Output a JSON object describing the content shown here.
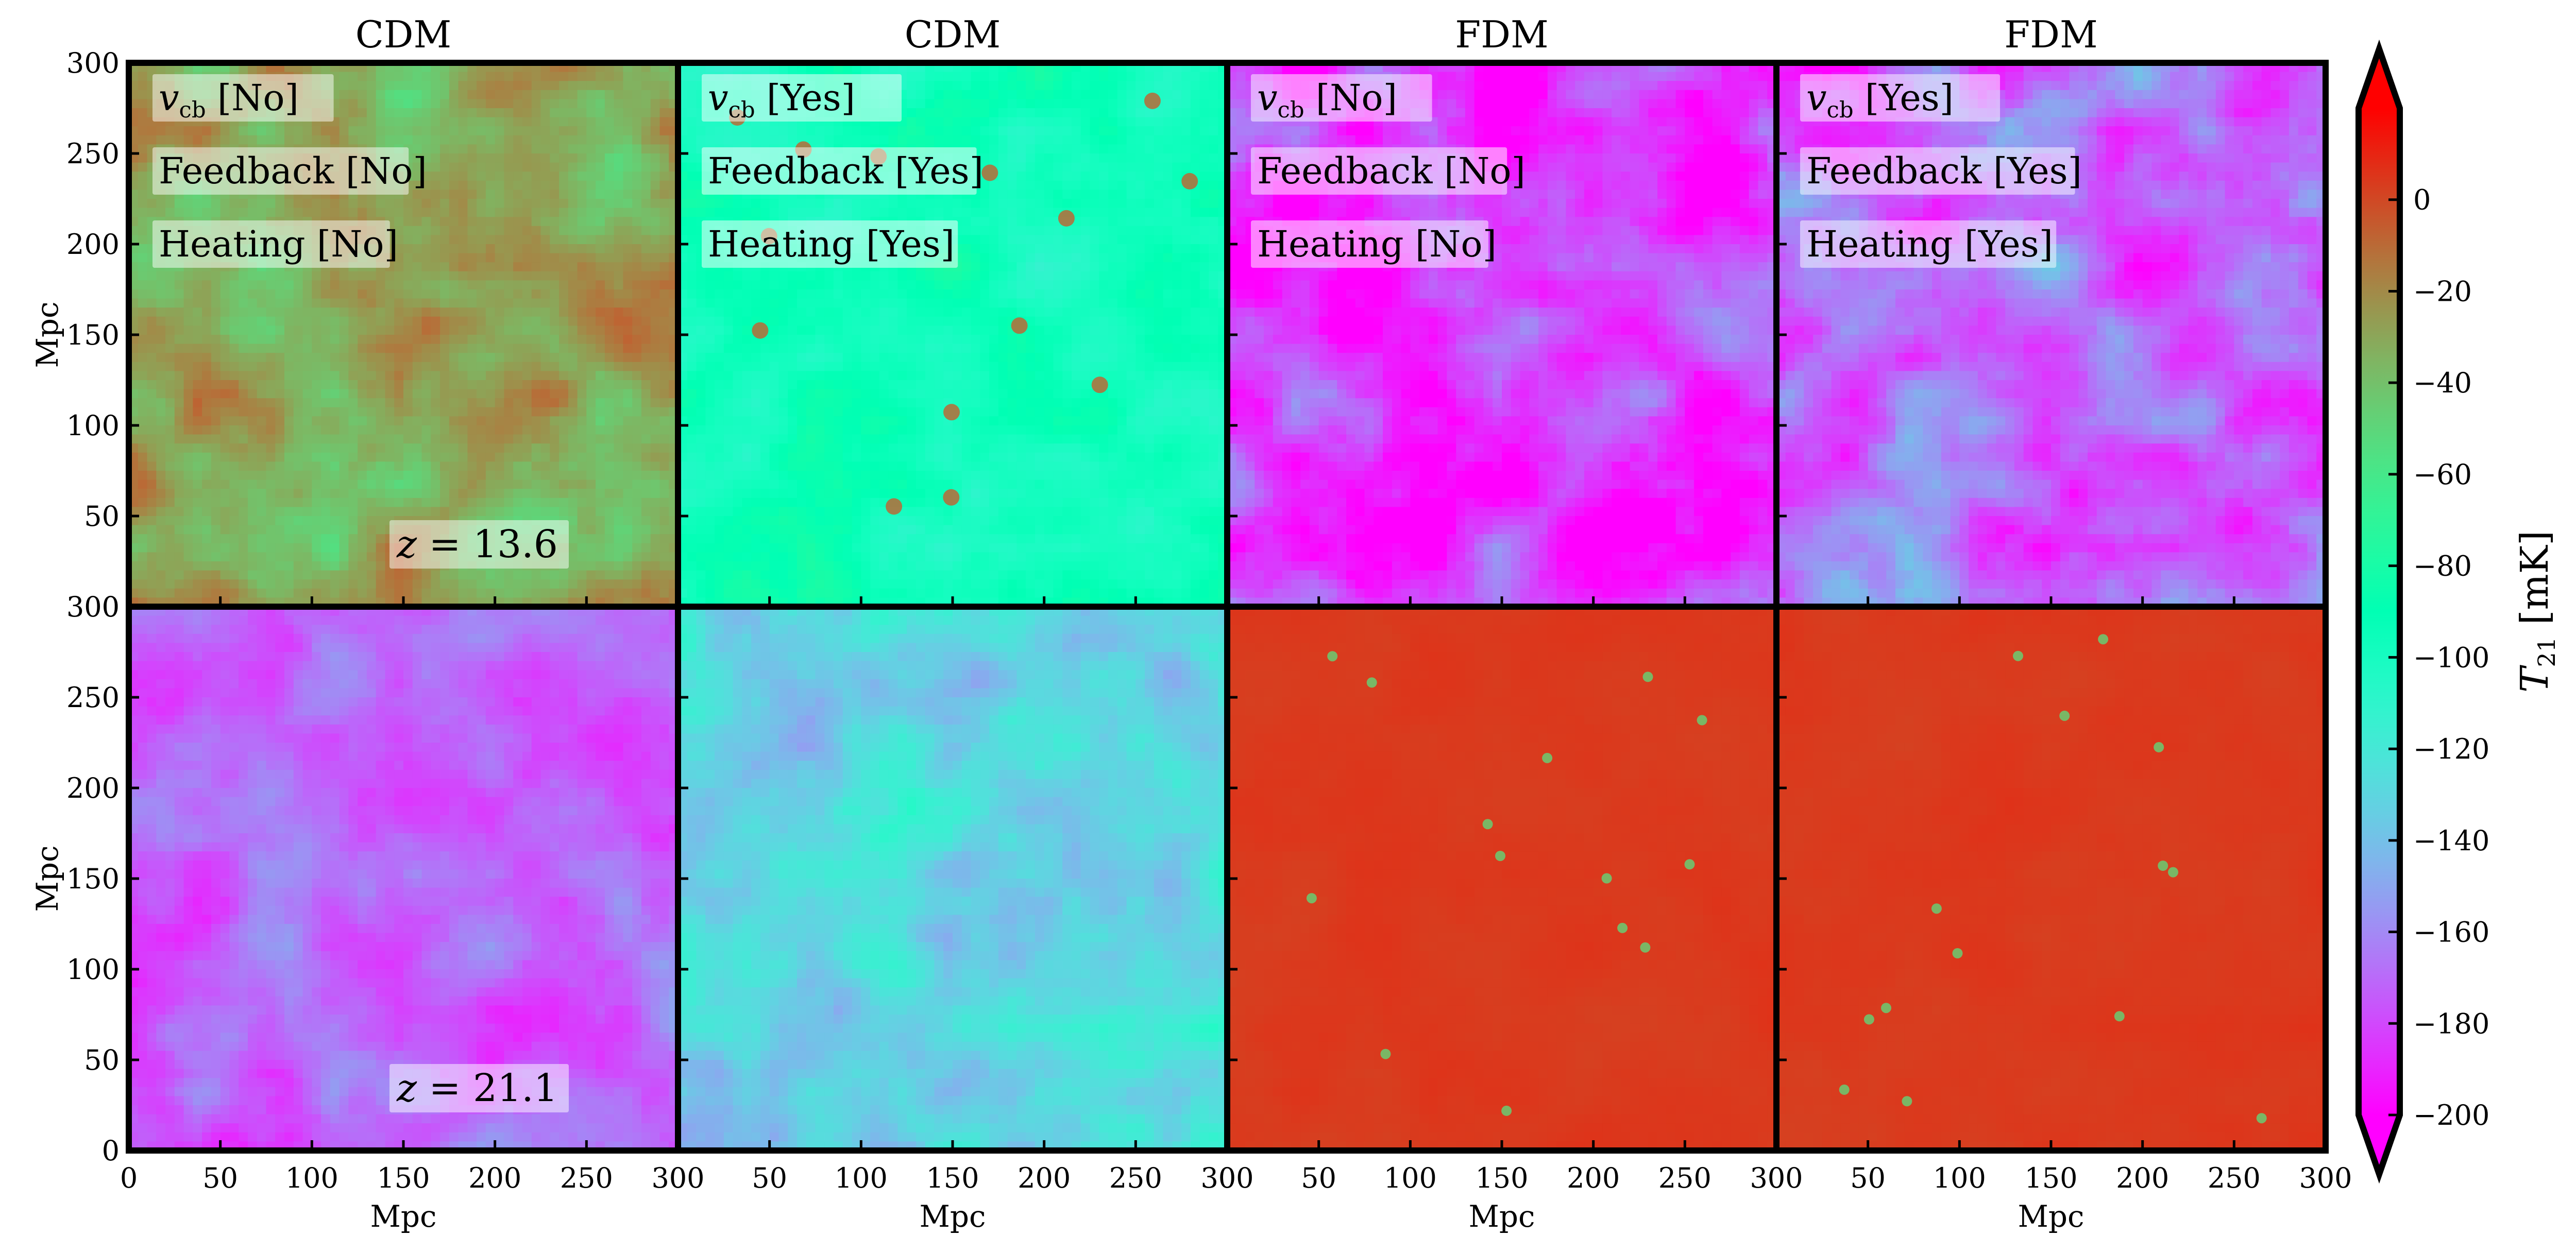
{
  "chart_data": {
    "type": "heatmap",
    "figure_layout": "2 rows x 4 columns",
    "column_titles": [
      "CDM",
      "CDM",
      "FDM",
      "FDM"
    ],
    "annotations_top_row": [
      [
        "v_cb [No]",
        "Feedback [No]",
        "Heating [No]"
      ],
      [
        "v_cb [Yes]",
        "Feedback [Yes]",
        "Heating [Yes]"
      ],
      [
        "v_cb [No]",
        "Feedback [No]",
        "Heating [No]"
      ],
      [
        "v_cb [Yes]",
        "Feedback [Yes]",
        "Heating [Yes]"
      ]
    ],
    "label_parts": {
      "v": "v",
      "cb": "cb",
      "no": "[No]",
      "yes": "[Yes]"
    },
    "redshift_labels": [
      "z = 13.6",
      "z = 21.1"
    ],
    "xlabel": "Mpc",
    "ylabel": "Mpc",
    "xlim": [
      0,
      300
    ],
    "ylim": [
      0,
      300
    ],
    "x_ticks": [
      0,
      50,
      100,
      150,
      200,
      250,
      300
    ],
    "y_ticks": [
      0,
      50,
      100,
      150,
      200,
      250,
      300
    ],
    "x_tick_labels": [
      "0",
      "50",
      "100",
      "150",
      "200",
      "250",
      "300"
    ],
    "y_tick_labels": [
      "0",
      "50",
      "100",
      "150",
      "200",
      "250",
      "300"
    ],
    "colorbar": {
      "label": "T_21 [mK]",
      "label_main": "T",
      "label_sub": "21",
      "label_unit": "[mK]",
      "colormap": "rainbow",
      "vmin": -200,
      "vmax": 20,
      "extend": "both",
      "ticks": [
        0,
        -20,
        -40,
        -60,
        -80,
        -100,
        -120,
        -140,
        -160,
        -180,
        -200
      ],
      "tick_labels": [
        "0",
        "−20",
        "−40",
        "−60",
        "−80",
        "−100",
        "−120",
        "−140",
        "−160",
        "−180",
        "−200"
      ]
    },
    "panels": [
      {
        "row": 0,
        "col": 0,
        "model": "CDM",
        "vcb": "No",
        "feedback": "No",
        "heating": "No",
        "redshift": 13.6,
        "mean_T21": -30,
        "spread": 22
      },
      {
        "row": 0,
        "col": 1,
        "model": "CDM",
        "vcb": "Yes",
        "feedback": "Yes",
        "heating": "Yes",
        "redshift": 13.6,
        "mean_T21": -95,
        "spread": 16
      },
      {
        "row": 0,
        "col": 2,
        "model": "FDM",
        "vcb": "No",
        "feedback": "No",
        "heating": "No",
        "redshift": 13.6,
        "mean_T21": -185,
        "spread": 30
      },
      {
        "row": 0,
        "col": 3,
        "model": "FDM",
        "vcb": "Yes",
        "feedback": "Yes",
        "heating": "Yes",
        "redshift": 13.6,
        "mean_T21": -170,
        "spread": 30
      },
      {
        "row": 1,
        "col": 0,
        "model": "CDM",
        "vcb": "No",
        "feedback": "No",
        "heating": "No",
        "redshift": 21.1,
        "mean_T21": -172,
        "spread": 20
      },
      {
        "row": 1,
        "col": 1,
        "model": "CDM",
        "vcb": "Yes",
        "feedback": "Yes",
        "heating": "Yes",
        "redshift": 21.1,
        "mean_T21": -130,
        "spread": 22
      },
      {
        "row": 1,
        "col": 2,
        "model": "FDM",
        "vcb": "No",
        "feedback": "No",
        "heating": "No",
        "redshift": 21.1,
        "mean_T21": 4,
        "spread": 2
      },
      {
        "row": 1,
        "col": 3,
        "model": "FDM",
        "vcb": "Yes",
        "feedback": "Yes",
        "heating": "Yes",
        "redshift": 21.1,
        "mean_T21": 4,
        "spread": 2
      }
    ]
  }
}
